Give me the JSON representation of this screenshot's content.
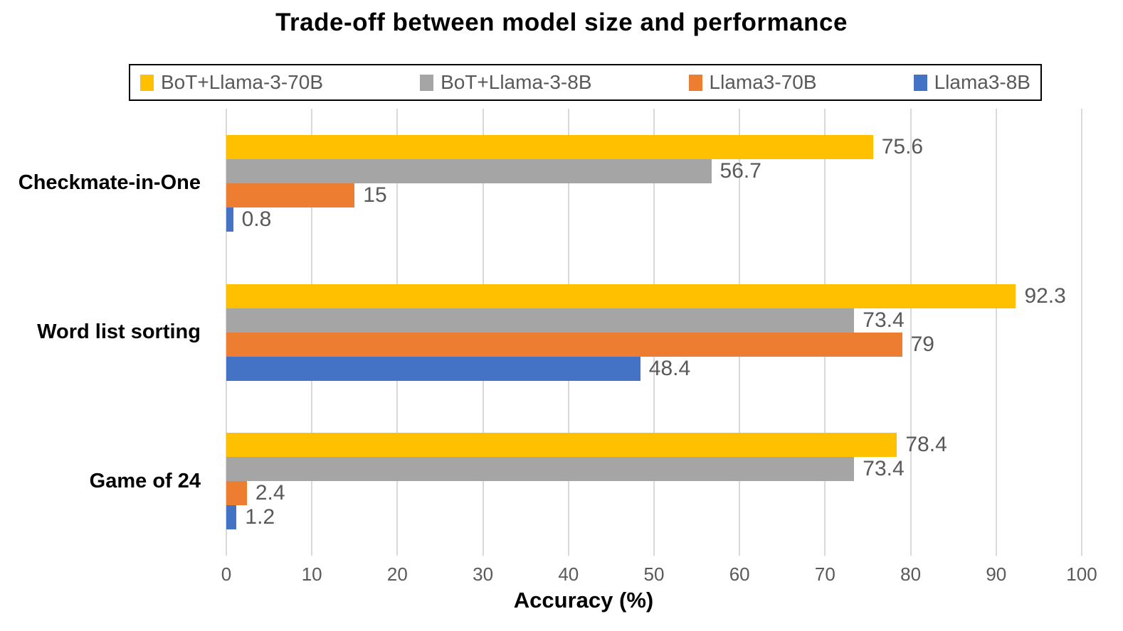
{
  "chart_data": {
    "type": "bar",
    "orientation": "horizontal",
    "title": "Trade-off between model size and performance",
    "xlabel": "Accuracy (%)",
    "xlim": [
      0,
      100
    ],
    "xticks": [
      0,
      10,
      20,
      30,
      40,
      50,
      60,
      70,
      80,
      90,
      100
    ],
    "grid": true,
    "legend_position": "top",
    "categories": [
      "Checkmate-in-One",
      "Word list sorting",
      "Game of 24"
    ],
    "series": [
      {
        "name": "BoT+Llama-3-70B",
        "color": "#FFC000",
        "values": [
          75.6,
          92.3,
          78.4
        ]
      },
      {
        "name": "BoT+Llama-3-8B",
        "color": "#A5A5A5",
        "values": [
          56.7,
          73.4,
          73.4
        ]
      },
      {
        "name": "Llama3-70B",
        "color": "#ED7D31",
        "values": [
          15,
          79,
          2.4
        ]
      },
      {
        "name": "Llama3-8B",
        "color": "#4472C4",
        "values": [
          0.8,
          48.4,
          1.2
        ]
      }
    ],
    "colors": {
      "grid": "#D9D9D9",
      "tick_label": "#595959",
      "value_label": "#595959",
      "legend_text": "#595959",
      "legend_border": "#000000"
    }
  }
}
